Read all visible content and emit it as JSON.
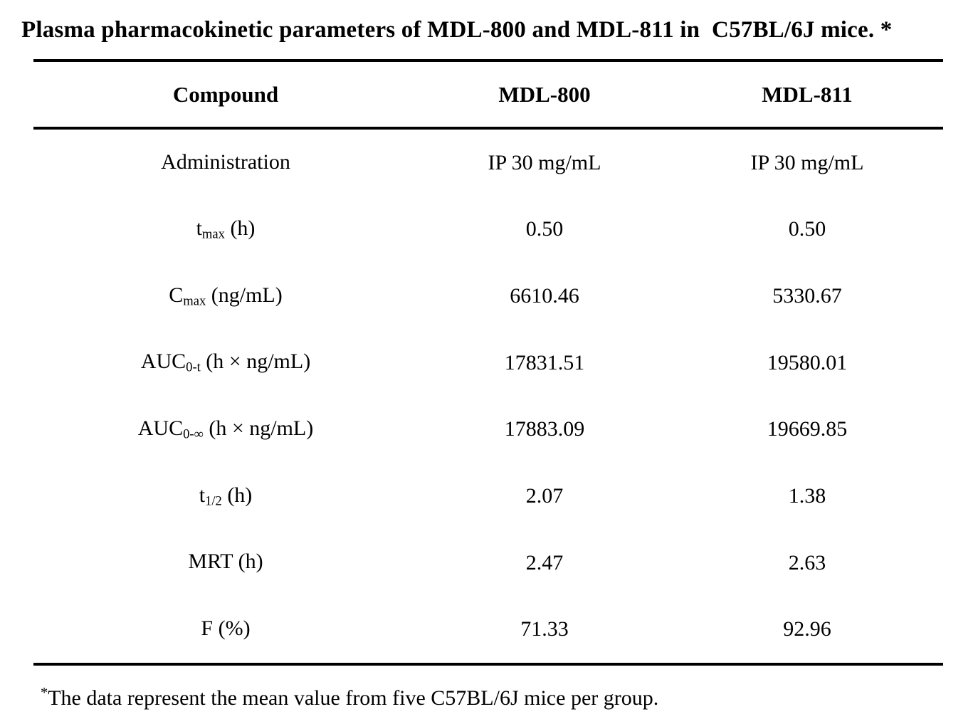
{
  "title": "Plasma pharmacokinetic parameters of MDL-800 and MDL-811 in  C57BL/6J mice. *",
  "header": {
    "compound": "Compound",
    "mdl800": "MDL-800",
    "mdl811": "MDL-811"
  },
  "rows": [
    {
      "label": {
        "base": "Administration",
        "sub": "",
        "rest": ""
      },
      "mdl800": "IP 30 mg/mL",
      "mdl811": "IP 30 mg/mL"
    },
    {
      "label": {
        "base": "t",
        "sub": "max",
        "rest": " (h)"
      },
      "mdl800": "0.50",
      "mdl811": "0.50"
    },
    {
      "label": {
        "base": "C",
        "sub": "max",
        "rest": " (ng/mL)"
      },
      "mdl800": "6610.46",
      "mdl811": "5330.67"
    },
    {
      "label": {
        "base": "AUC",
        "sub": "0-t",
        "rest": " (h × ng/mL)"
      },
      "mdl800": "17831.51",
      "mdl811": "19580.01"
    },
    {
      "label": {
        "base": "AUC",
        "sub": "0-∞",
        "rest": " (h × ng/mL)"
      },
      "mdl800": "17883.09",
      "mdl811": "19669.85"
    },
    {
      "label": {
        "base": "t",
        "sub": "1/2",
        "rest": " (h)"
      },
      "mdl800": "2.07",
      "mdl811": "1.38"
    },
    {
      "label": {
        "base": "MRT (h)",
        "sub": "",
        "rest": ""
      },
      "mdl800": "2.47",
      "mdl811": "2.63"
    },
    {
      "label": {
        "base": "F (%)",
        "sub": "",
        "rest": ""
      },
      "mdl800": "71.33",
      "mdl811": "92.96"
    }
  ],
  "footnote": {
    "marker": "*",
    "text": "The data represent the mean value from five C57BL/6J mice per group."
  },
  "colors": {
    "text": "#000000",
    "background": "#ffffff",
    "rule": "#000000"
  },
  "chart_data": {
    "type": "table",
    "title": "Plasma pharmacokinetic parameters of MDL-800 and MDL-811 in C57BL/6J mice.",
    "columns": [
      "Compound",
      "MDL-800",
      "MDL-811"
    ],
    "rows": [
      [
        "Administration",
        "IP 30 mg/mL",
        "IP 30 mg/mL"
      ],
      [
        "tmax (h)",
        0.5,
        0.5
      ],
      [
        "Cmax (ng/mL)",
        6610.46,
        5330.67
      ],
      [
        "AUC0-t (h × ng/mL)",
        17831.51,
        19580.01
      ],
      [
        "AUC0-∞ (h × ng/mL)",
        17883.09,
        19669.85
      ],
      [
        "t1/2 (h)",
        2.07,
        1.38
      ],
      [
        "MRT (h)",
        2.47,
        2.63
      ],
      [
        "F (%)",
        71.33,
        92.96
      ]
    ]
  }
}
